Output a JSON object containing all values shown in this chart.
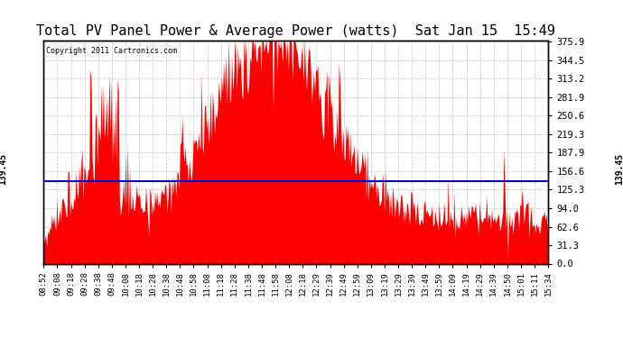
{
  "title": "Total PV Panel Power & Average Power (watts)  Sat Jan 15  15:49",
  "copyright": "Copyright 2011 Cartronics.com",
  "avg_power": 139.45,
  "y_max": 375.9,
  "y_min": 0.0,
  "y_ticks": [
    0.0,
    31.3,
    62.6,
    94.0,
    125.3,
    156.6,
    187.9,
    219.3,
    250.6,
    281.9,
    313.2,
    344.5,
    375.9
  ],
  "x_tick_labels": [
    "08:52",
    "09:08",
    "09:18",
    "09:28",
    "09:38",
    "09:48",
    "10:08",
    "10:18",
    "10:28",
    "10:38",
    "10:48",
    "10:58",
    "11:08",
    "11:18",
    "11:28",
    "11:38",
    "11:48",
    "11:58",
    "12:08",
    "12:18",
    "12:29",
    "12:39",
    "12:49",
    "12:59",
    "13:09",
    "13:19",
    "13:29",
    "13:39",
    "13:49",
    "13:59",
    "14:09",
    "14:19",
    "14:29",
    "14:39",
    "14:50",
    "15:01",
    "15:11",
    "15:34"
  ],
  "background_color": "#ffffff",
  "fill_color": "#ff0000",
  "line_color": "#0000cc",
  "title_fontsize": 11,
  "grid_color": "#aaaaaa",
  "seed": 1234
}
